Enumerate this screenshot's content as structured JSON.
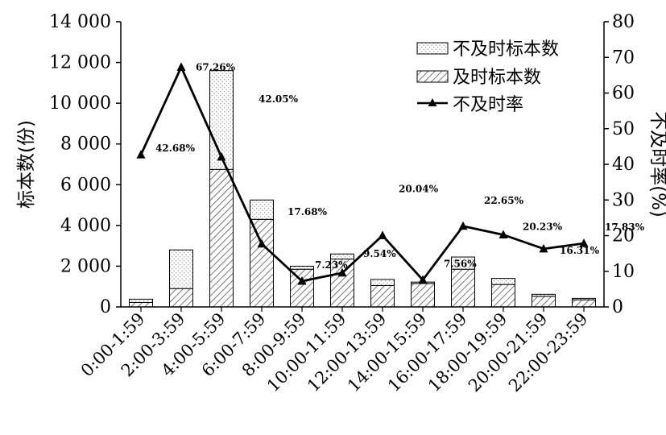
{
  "chart_data": {
    "type": "bar",
    "categories": [
      "0:00-1:59",
      "2:00-3:59",
      "4:00-5:59",
      "6:00-7:59",
      "8:00-9:59",
      "10:00-11:59",
      "12:00-13:59",
      "14:00-15:59",
      "16:00-17:59",
      "18:00-19:59",
      "20:00-21:59",
      "22:00-23:59"
    ],
    "series": [
      {
        "name": "及时标本数",
        "chart": "stacked-bar",
        "axis": "left",
        "values": [
          220,
          900,
          6750,
          4300,
          1850,
          2350,
          1050,
          1150,
          1850,
          1100,
          520,
          350
        ]
      },
      {
        "name": "不及时标本数",
        "chart": "stacked-bar",
        "axis": "left",
        "values": [
          160,
          1900,
          4850,
          950,
          150,
          250,
          300,
          70,
          600,
          300,
          100,
          70
        ]
      },
      {
        "name": "不及时率",
        "chart": "line",
        "axis": "right",
        "marker": "triangle",
        "values": [
          42.68,
          67.26,
          42.05,
          17.68,
          7.23,
          9.54,
          20.04,
          7.56,
          22.65,
          20.23,
          16.31,
          17.83
        ],
        "labels": [
          "42.68%",
          "67.26%",
          "42.05%",
          "17.68%",
          "7.23%",
          "9.54%",
          "20.04%",
          "7.56%",
          "22.65%",
          "20.23%",
          "16.31%",
          "17.83%"
        ]
      }
    ],
    "ylabel": "标本数(份)",
    "ylabel_right": "不及时率(%)",
    "ylim": [
      0,
      14000
    ],
    "ylim_right": [
      0,
      80
    ],
    "yticks": [
      "0",
      "2 000",
      "4 000",
      "6 000",
      "8 000",
      "10 000",
      "12 000",
      "14 000"
    ],
    "yticks_right": [
      "0",
      "10",
      "20",
      "30",
      "40",
      "50",
      "60",
      "70",
      "80"
    ],
    "legend_position": "top-right",
    "grid": false,
    "colors": {
      "line": "#000000",
      "bar_edge": "#000000",
      "hatch": "#555555",
      "dots": "#777777"
    }
  }
}
